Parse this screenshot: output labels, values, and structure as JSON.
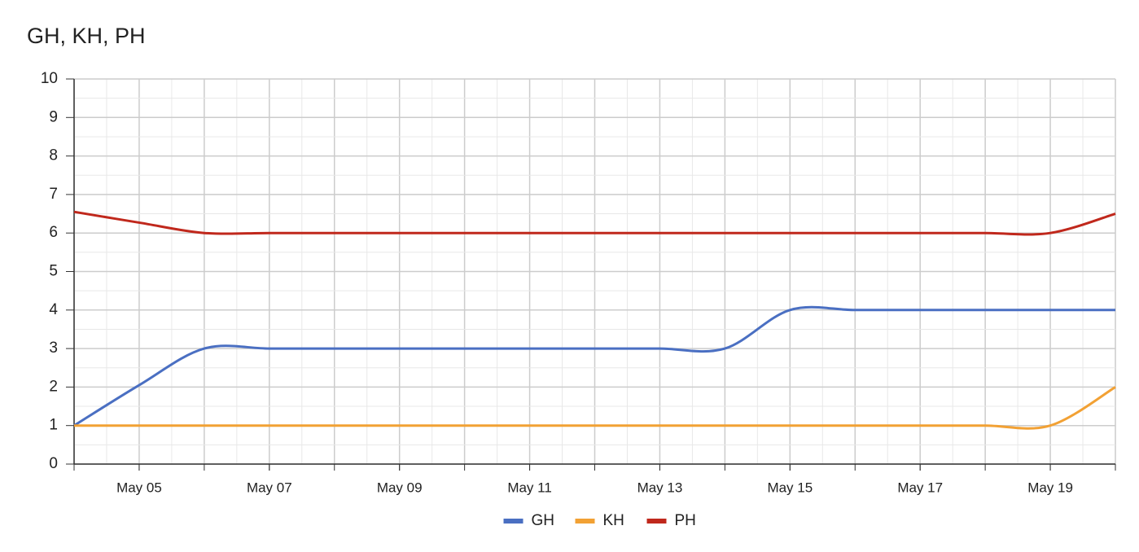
{
  "chart_data": {
    "type": "line",
    "title": "GH, KH, PH",
    "x": [
      4,
      5,
      6,
      7,
      8,
      9,
      10,
      11,
      12,
      13,
      14,
      15,
      16,
      17,
      18,
      19,
      20
    ],
    "xlim": [
      4,
      20
    ],
    "xticks": [
      {
        "value": 5,
        "label": "May 05"
      },
      {
        "value": 7,
        "label": "May 07"
      },
      {
        "value": 9,
        "label": "May 09"
      },
      {
        "value": 11,
        "label": "May 11"
      },
      {
        "value": 13,
        "label": "May 13"
      },
      {
        "value": 15,
        "label": "May 15"
      },
      {
        "value": 17,
        "label": "May 17"
      },
      {
        "value": 19,
        "label": "May 19"
      }
    ],
    "ylim": [
      0,
      10
    ],
    "yticks": [
      0,
      1,
      2,
      3,
      4,
      5,
      6,
      7,
      8,
      9,
      10
    ],
    "grid": true,
    "smooth": true,
    "legend": "bottom",
    "series": [
      {
        "name": "GH",
        "color": "#4a6fc2",
        "values": [
          1,
          2.05,
          3,
          3,
          3,
          3,
          3,
          3,
          3,
          3,
          3,
          4,
          4,
          4,
          4,
          4,
          4
        ]
      },
      {
        "name": "KH",
        "color": "#f2a134",
        "values": [
          1,
          1,
          1,
          1,
          1,
          1,
          1,
          1,
          1,
          1,
          1,
          1,
          1,
          1,
          1,
          1,
          2
        ]
      },
      {
        "name": "PH",
        "color": "#c0281c",
        "values": [
          6.55,
          6.27,
          6,
          6,
          6,
          6,
          6,
          6,
          6,
          6,
          6,
          6,
          6,
          6,
          6,
          6,
          6.5
        ]
      }
    ]
  }
}
